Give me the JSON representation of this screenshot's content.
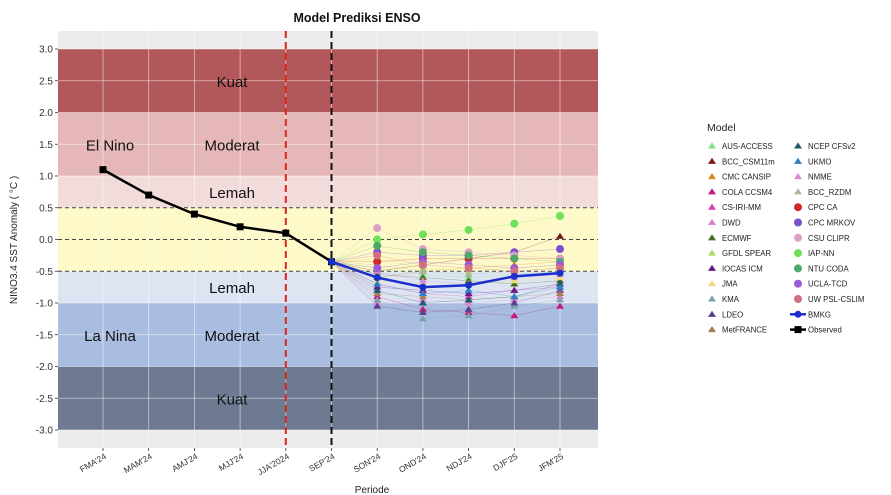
{
  "chart_data": {
    "type": "line",
    "title": "Model Prediksi ENSO",
    "xlabel": "Periode",
    "ylabel": "NINO3.4 SST Anomaly ( °C )",
    "ylim": [
      -3.0,
      3.0
    ],
    "yticks": [
      "3.0",
      "2.5",
      "2.0",
      "1.5",
      "1.0",
      "0.5",
      "0.0",
      "-0.5",
      "-1.0",
      "-1.5",
      "-2.0",
      "-2.5",
      "-3.0"
    ],
    "categories": [
      "FMA'24",
      "MAM'24",
      "AMJ'24",
      "MJJ'24",
      "JJA'2024",
      "SEP'24",
      "SON'24",
      "OND'24",
      "NDJ'24",
      "DJF'25",
      "JFM'25"
    ],
    "grid": true,
    "legend_position": "right",
    "legend_title": "Model",
    "bands": [
      {
        "from": 2.0,
        "to": 3.0,
        "label": "Kuat",
        "color": "#b3585a"
      },
      {
        "from": 1.0,
        "to": 2.0,
        "label": "Moderat",
        "color": "#e6b7b8"
      },
      {
        "from": 0.5,
        "to": 1.0,
        "label": "Lemah",
        "color": "#f2dcdb"
      },
      {
        "from": -0.5,
        "to": 0.5,
        "label": "",
        "color": "#fdf9c8"
      },
      {
        "from": -1.0,
        "to": -0.5,
        "label": "Lemah",
        "color": "#dde5f3"
      },
      {
        "from": -2.0,
        "to": -1.0,
        "label": "Moderat",
        "color": "#a9bde0"
      },
      {
        "from": -3.0,
        "to": -2.0,
        "label": "Kuat",
        "color": "#6e7a91"
      }
    ],
    "phase_labels": [
      {
        "text": "El Nino",
        "y": 1.5
      },
      {
        "text": "La Nina",
        "y": -1.5
      }
    ],
    "threshold_lines": [
      0.5,
      0.0,
      -0.5
    ],
    "vlines": [
      {
        "category": "JJA'2024",
        "color": "#e0241b",
        "style": "dashed"
      },
      {
        "category": "SEP'24",
        "color": "#111111",
        "style": "dashed"
      }
    ],
    "series": [
      {
        "name": "Observed",
        "color": "#000000",
        "marker": "square",
        "x": [
          "FMA'24",
          "MAM'24",
          "AMJ'24",
          "MJJ'24",
          "JJA'2024",
          "SEP'24"
        ],
        "values": [
          1.1,
          0.7,
          0.4,
          0.2,
          0.1,
          -0.35
        ]
      },
      {
        "name": "BMKG",
        "color": "#1a2ecc",
        "marker": "circle",
        "x": [
          "SEP'24",
          "SON'24",
          "OND'24",
          "NDJ'24",
          "DJF'25",
          "JFM'25"
        ],
        "values": [
          -0.35,
          -0.6,
          -0.75,
          -0.72,
          -0.58,
          -0.53
        ]
      }
    ],
    "models": [
      {
        "name": "AUS-ACCESS",
        "color": "#7ee08a",
        "marker": "triangle",
        "values": [
          -0.45,
          -0.55,
          -0.6,
          -0.55,
          -0.5
        ]
      },
      {
        "name": "BCC_CSM11m",
        "color": "#7a1a1a",
        "marker": "triangle",
        "values": [
          -0.5,
          -0.4,
          -0.3,
          -0.2,
          0.05
        ]
      },
      {
        "name": "CMC CANSIP",
        "color": "#d98a1f",
        "marker": "triangle",
        "values": [
          -0.6,
          -0.5,
          -0.45,
          -0.4,
          -0.35
        ]
      },
      {
        "name": "COLA CCSM4",
        "color": "#c4197a",
        "marker": "triangle",
        "values": [
          -0.9,
          -1.1,
          -1.15,
          -1.2,
          -1.05
        ]
      },
      {
        "name": "CS-IRI-MM",
        "color": "#d13fb8",
        "marker": "triangle",
        "values": [
          -0.7,
          -0.85,
          -0.9,
          -0.8,
          -0.75
        ]
      },
      {
        "name": "DWD",
        "color": "#e07fd0",
        "marker": "triangle",
        "values": [
          -1.0,
          -0.95,
          -1.0,
          -0.95,
          -0.9
        ]
      },
      {
        "name": "ECMWF",
        "color": "#4d6b1e",
        "marker": "triangle",
        "values": [
          -0.55,
          -0.6,
          -0.65,
          -0.7,
          -0.65
        ]
      },
      {
        "name": "GFDL SPEAR",
        "color": "#b5d96a",
        "marker": "triangle",
        "values": [
          -0.3,
          -0.45,
          -0.5,
          -0.45,
          -0.4
        ]
      },
      {
        "name": "IOCAS ICM",
        "color": "#6a1a8a",
        "marker": "triangle",
        "values": [
          -0.75,
          -0.8,
          -0.85,
          -0.8,
          -0.7
        ]
      },
      {
        "name": "JMA",
        "color": "#f2dc7a",
        "marker": "triangle",
        "values": [
          -0.65,
          -0.7,
          -0.7,
          -0.65,
          -0.6
        ]
      },
      {
        "name": "KMA",
        "color": "#7aa3ac",
        "marker": "triangle",
        "values": [
          -0.95,
          -1.25,
          -1.2,
          -1.05,
          -0.95
        ]
      },
      {
        "name": "LDEO",
        "color": "#5a3f8e",
        "marker": "triangle",
        "values": [
          -1.05,
          -1.15,
          -1.1,
          -1.0,
          -0.8
        ]
      },
      {
        "name": "MetFRANCE",
        "color": "#a67c52",
        "marker": "triangle",
        "values": [
          -0.85,
          -0.9,
          -0.95,
          -0.9,
          -0.85
        ]
      },
      {
        "name": "NCEP CFSv2",
        "color": "#1f5a6e",
        "marker": "triangle",
        "values": [
          -0.8,
          -1.0,
          -0.95,
          -0.9,
          -0.7
        ]
      },
      {
        "name": "UKMO",
        "color": "#2f7fc9",
        "marker": "triangle",
        "values": [
          -0.7,
          -0.85,
          -0.8,
          -0.9,
          -0.75
        ]
      },
      {
        "name": "NMME",
        "color": "#d58bd8",
        "marker": "triangle",
        "values": [
          -0.5,
          -0.65,
          -0.7,
          -0.6,
          -0.55
        ]
      },
      {
        "name": "BCC_RZDM",
        "color": "#a6b89a",
        "marker": "triangle",
        "values": [
          -0.4,
          -0.5,
          -0.55,
          -0.5,
          -0.45
        ]
      },
      {
        "name": "CPC CA",
        "color": "#cc2a2a",
        "marker": "circle",
        "values": [
          -0.35,
          -0.3,
          -0.3,
          -0.3,
          -0.3
        ]
      },
      {
        "name": "CPC MRKOV",
        "color": "#7a4fcf",
        "marker": "circle",
        "values": [
          -0.2,
          -0.25,
          -0.25,
          -0.2,
          -0.15
        ]
      },
      {
        "name": "CSU CLIPR",
        "color": "#d9a0c8",
        "marker": "circle",
        "values": [
          0.18,
          -0.15,
          -0.2,
          -0.25,
          -0.3
        ]
      },
      {
        "name": "IAP-NN",
        "color": "#6ee05a",
        "marker": "circle",
        "values": [
          0.0,
          0.08,
          0.15,
          0.25,
          0.37
        ]
      },
      {
        "name": "NTU CODA",
        "color": "#4fa86a",
        "marker": "circle",
        "values": [
          -0.1,
          -0.2,
          -0.25,
          -0.3,
          -0.35
        ]
      },
      {
        "name": "UCLA-TCD",
        "color": "#9a5ad8",
        "marker": "circle",
        "values": [
          -0.45,
          -0.35,
          -0.4,
          -0.45,
          -0.4
        ]
      },
      {
        "name": "UW PSL-CSLIM",
        "color": "#cf6f7f",
        "marker": "circle",
        "values": [
          -0.25,
          -0.4,
          -0.45,
          -0.5,
          -0.45
        ]
      }
    ],
    "model_x": [
      "SON'24",
      "OND'24",
      "NDJ'24",
      "DJF'25",
      "JFM'25"
    ],
    "legend_extra": [
      {
        "name": "BMKG",
        "color": "#1a2ecc",
        "marker": "circle-line"
      },
      {
        "name": "Observed",
        "color": "#000000",
        "marker": "square-line"
      }
    ]
  }
}
